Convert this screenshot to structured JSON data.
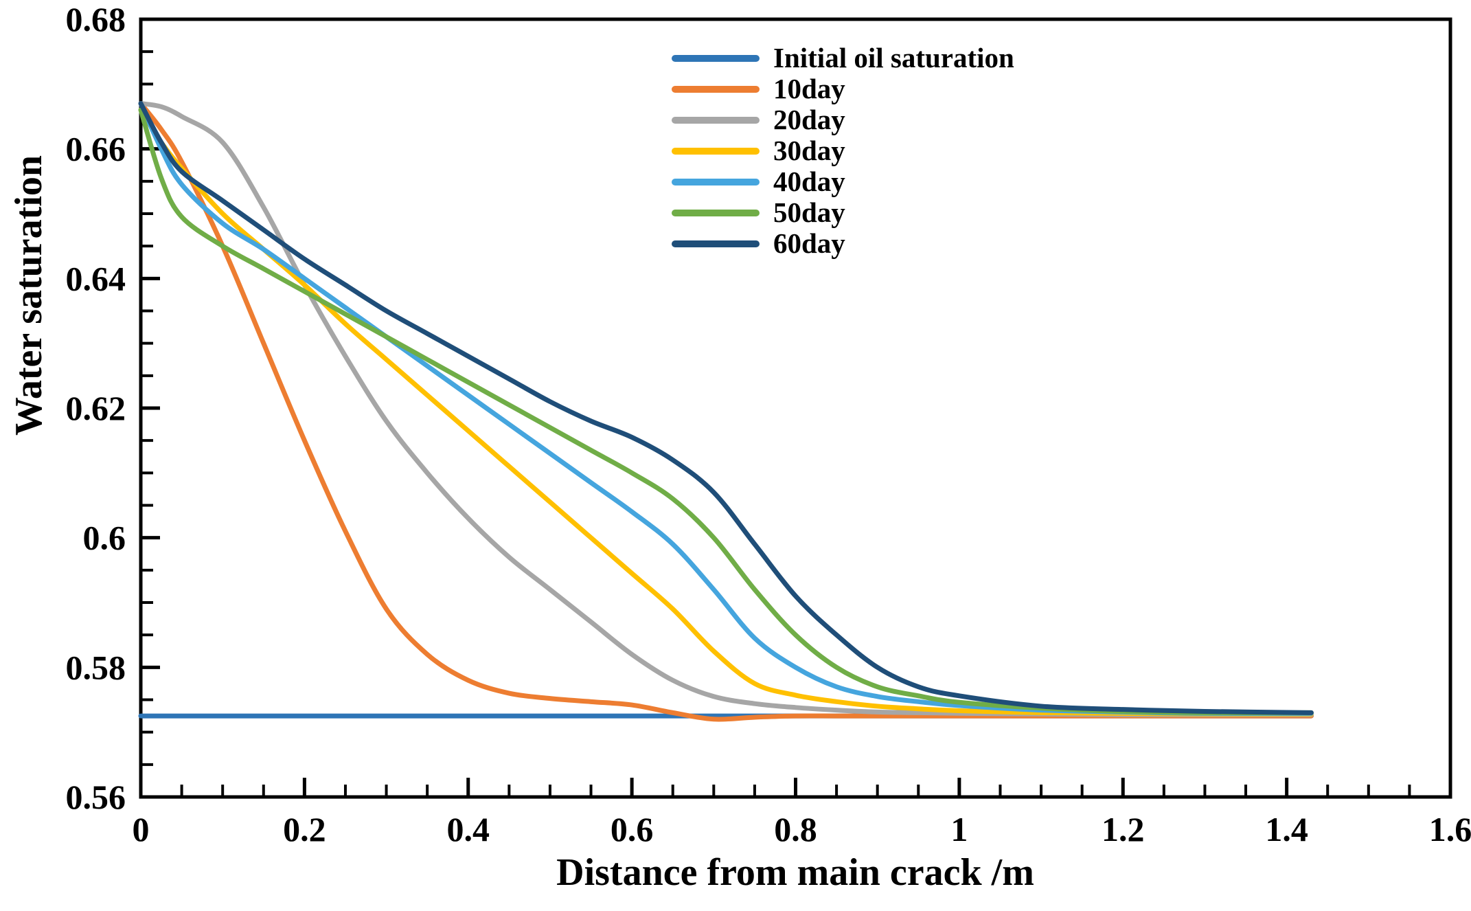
{
  "chart_data": {
    "type": "line",
    "title": "",
    "xlabel": "Distance from main crack /m",
    "ylabel": "Water saturation",
    "xlim": [
      0,
      1.6
    ],
    "ylim": [
      0.56,
      0.68
    ],
    "grid": false,
    "legend_position": "top-right",
    "xtick_values": [
      0,
      0.2,
      0.4,
      0.6,
      0.8,
      1,
      1.2,
      1.4,
      1.6
    ],
    "xtick_labels": [
      "0",
      "0.2",
      "0.4",
      "0.6",
      "0.8",
      "1",
      "1.2",
      "1.4",
      "1.6"
    ],
    "ytick_values": [
      0.56,
      0.58,
      0.6,
      0.62,
      0.64,
      0.66,
      0.68
    ],
    "ytick_labels": [
      "0.56",
      "0.58",
      "0.6",
      "0.62",
      "0.64",
      "0.66",
      "0.68"
    ],
    "x_minor_step": 0.05,
    "y_minor_step": 0.005,
    "x": [
      0,
      0.025,
      0.05,
      0.1,
      0.15,
      0.2,
      0.25,
      0.3,
      0.35,
      0.4,
      0.45,
      0.5,
      0.55,
      0.6,
      0.65,
      0.7,
      0.75,
      0.8,
      0.85,
      0.9,
      0.95,
      1.0,
      1.1,
      1.2,
      1.3,
      1.43
    ],
    "series": [
      {
        "name": "Initial oil saturation",
        "color": "#2E75B6",
        "values": [
          0.5725,
          0.5725,
          0.5725,
          0.5725,
          0.5725,
          0.5725,
          0.5725,
          0.5725,
          0.5725,
          0.5725,
          0.5725,
          0.5725,
          0.5725,
          0.5725,
          0.5725,
          0.5725,
          0.5725,
          0.5725,
          0.5725,
          0.5725,
          0.5725,
          0.5725,
          0.5725,
          0.5725,
          0.5725,
          0.5725
        ]
      },
      {
        "name": "10day",
        "color": "#ED7D31",
        "values": [
          0.667,
          0.663,
          0.658,
          0.645,
          0.63,
          0.615,
          0.601,
          0.589,
          0.582,
          0.578,
          0.576,
          0.5752,
          0.5747,
          0.5742,
          0.573,
          0.572,
          0.5723,
          0.5725,
          0.5725,
          0.5725,
          0.5725,
          0.5725,
          0.5725,
          0.5725,
          0.5725,
          0.5725
        ]
      },
      {
        "name": "20day",
        "color": "#A6A6A6",
        "values": [
          0.667,
          0.6665,
          0.665,
          0.661,
          0.651,
          0.639,
          0.628,
          0.618,
          0.61,
          0.603,
          0.597,
          0.592,
          0.587,
          0.582,
          0.578,
          0.5755,
          0.5744,
          0.5738,
          0.5734,
          0.5731,
          0.573,
          0.5729,
          0.5728,
          0.5727,
          0.5727,
          0.5727
        ]
      },
      {
        "name": "30day",
        "color": "#FFC000",
        "values": [
          0.666,
          0.661,
          0.657,
          0.65,
          0.6445,
          0.639,
          0.633,
          0.6275,
          0.622,
          0.6165,
          0.611,
          0.6055,
          0.6,
          0.5945,
          0.589,
          0.5825,
          0.5775,
          0.5757,
          0.5747,
          0.574,
          0.5736,
          0.5733,
          0.573,
          0.5729,
          0.5728,
          0.5728
        ]
      },
      {
        "name": "40day",
        "color": "#45A5DE",
        "values": [
          0.667,
          0.66,
          0.6545,
          0.6485,
          0.6445,
          0.64,
          0.6355,
          0.631,
          0.6265,
          0.622,
          0.6175,
          0.613,
          0.6085,
          0.604,
          0.599,
          0.592,
          0.5845,
          0.58,
          0.577,
          0.5755,
          0.5747,
          0.5741,
          0.5734,
          0.5731,
          0.5729,
          0.5729
        ]
      },
      {
        "name": "50day",
        "color": "#70AD47",
        "values": [
          0.666,
          0.6555,
          0.6495,
          0.645,
          0.6415,
          0.638,
          0.6345,
          0.631,
          0.6275,
          0.624,
          0.6205,
          0.617,
          0.6135,
          0.61,
          0.606,
          0.6,
          0.592,
          0.585,
          0.58,
          0.577,
          0.5756,
          0.5746,
          0.5737,
          0.5732,
          0.573,
          0.573
        ]
      },
      {
        "name": "60day",
        "color": "#1F4E79",
        "values": [
          0.667,
          0.661,
          0.6565,
          0.652,
          0.6475,
          0.643,
          0.639,
          0.635,
          0.6315,
          0.628,
          0.6245,
          0.621,
          0.618,
          0.6155,
          0.612,
          0.607,
          0.599,
          0.591,
          0.585,
          0.58,
          0.577,
          0.5756,
          0.574,
          0.5735,
          0.5732,
          0.573
        ]
      }
    ]
  }
}
